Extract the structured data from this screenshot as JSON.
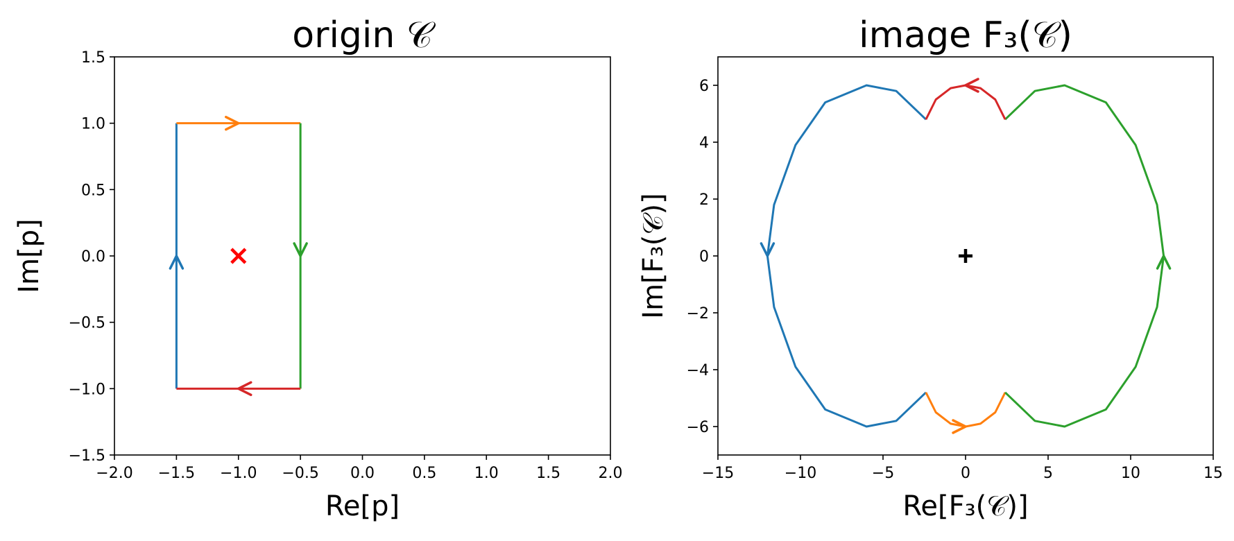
{
  "chart_data": [
    {
      "type": "line",
      "title": "origin 𝒞",
      "xlabel": "Re[p]",
      "ylabel": "Im[p]",
      "xlim": [
        -2.0,
        2.0
      ],
      "ylim": [
        -1.5,
        1.5
      ],
      "xticks": [
        -2.0,
        -1.5,
        -1.0,
        -0.5,
        0.0,
        0.5,
        1.0,
        1.5,
        2.0
      ],
      "yticks": [
        -1.5,
        -1.0,
        -0.5,
        0.0,
        0.5,
        1.0,
        1.5
      ],
      "xtick_labels": [
        "−2.0",
        "−1.5",
        "−1.0",
        "−0.5",
        "0.0",
        "0.5",
        "1.0",
        "1.5",
        "2.0"
      ],
      "ytick_labels": [
        "−1.5",
        "−1.0",
        "−0.5",
        "0.0",
        "0.5",
        "1.0",
        "1.5"
      ],
      "grid": false,
      "series": [
        {
          "color": "#1f77b4",
          "points": [
            [
              -1.5,
              -1.0
            ],
            [
              -1.5,
              1.0
            ]
          ],
          "arrow": {
            "at": [
              -1.5,
              0.0
            ],
            "direction": "up"
          }
        },
        {
          "color": "#ff7f0e",
          "points": [
            [
              -1.5,
              1.0
            ],
            [
              -0.5,
              1.0
            ]
          ],
          "arrow": {
            "at": [
              -1.0,
              1.0
            ],
            "direction": "right"
          }
        },
        {
          "color": "#2ca02c",
          "points": [
            [
              -0.5,
              1.0
            ],
            [
              -0.5,
              -1.0
            ]
          ],
          "arrow": {
            "at": [
              -0.5,
              0.0
            ],
            "direction": "down"
          }
        },
        {
          "color": "#d62728",
          "points": [
            [
              -0.5,
              -1.0
            ],
            [
              -1.5,
              -1.0
            ]
          ],
          "arrow": {
            "at": [
              -1.0,
              -1.0
            ],
            "direction": "left"
          }
        }
      ],
      "markers": [
        {
          "symbol": "x",
          "color": "#ff0000",
          "x": -1.0,
          "y": 0.0
        }
      ]
    },
    {
      "type": "line",
      "title": "image F₃(𝒞)",
      "xlabel": "Re[F₃(𝒞)]",
      "ylabel": "Im[F₃(𝒞)]",
      "xlim": [
        -15,
        15
      ],
      "ylim": [
        -7,
        7
      ],
      "xticks": [
        -15,
        -10,
        -5,
        0,
        5,
        10,
        15
      ],
      "yticks": [
        -6,
        -4,
        -2,
        0,
        2,
        4,
        6
      ],
      "xtick_labels": [
        "−15",
        "−10",
        "−5",
        "0",
        "5",
        "10",
        "15"
      ],
      "ytick_labels": [
        "−6",
        "−4",
        "−2",
        "0",
        "2",
        "4",
        "6"
      ],
      "grid": false,
      "series": [
        {
          "color": "#1f77b4",
          "points": [
            [
              -2.4,
              -4.8
            ],
            [
              -4.2,
              -5.8
            ],
            [
              -6.0,
              -6.0
            ],
            [
              -8.5,
              -5.4
            ],
            [
              -10.3,
              -3.9
            ],
            [
              -11.6,
              -1.8
            ],
            [
              -12.0,
              0.0
            ],
            [
              -11.6,
              1.8
            ],
            [
              -10.3,
              3.9
            ],
            [
              -8.5,
              5.4
            ],
            [
              -6.0,
              6.0
            ],
            [
              -4.2,
              5.8
            ],
            [
              -2.4,
              4.8
            ]
          ],
          "arrow": {
            "at": [
              -12.0,
              0.0
            ],
            "direction": "down"
          }
        },
        {
          "color": "#ff7f0e",
          "points": [
            [
              -2.4,
              -4.8
            ],
            [
              -1.8,
              -5.5
            ],
            [
              -0.9,
              -5.9
            ],
            [
              0.0,
              -6.0
            ],
            [
              0.9,
              -5.9
            ],
            [
              1.8,
              -5.5
            ],
            [
              2.4,
              -4.8
            ]
          ],
          "arrow": {
            "at": [
              0.0,
              -6.0
            ],
            "direction": "right"
          }
        },
        {
          "color": "#2ca02c",
          "points": [
            [
              2.4,
              4.8
            ],
            [
              4.2,
              5.8
            ],
            [
              6.0,
              6.0
            ],
            [
              8.5,
              5.4
            ],
            [
              10.3,
              3.9
            ],
            [
              11.6,
              1.8
            ],
            [
              12.0,
              0.0
            ],
            [
              11.6,
              -1.8
            ],
            [
              10.3,
              -3.9
            ],
            [
              8.5,
              -5.4
            ],
            [
              6.0,
              -6.0
            ],
            [
              4.2,
              -5.8
            ],
            [
              2.4,
              -4.8
            ]
          ],
          "arrow": {
            "at": [
              12.0,
              0.0
            ],
            "direction": "up"
          }
        },
        {
          "color": "#d62728",
          "points": [
            [
              2.4,
              4.8
            ],
            [
              1.8,
              5.5
            ],
            [
              0.9,
              5.9
            ],
            [
              0.0,
              6.0
            ],
            [
              -0.9,
              5.9
            ],
            [
              -1.8,
              5.5
            ],
            [
              -2.4,
              4.8
            ]
          ],
          "arrow": {
            "at": [
              0.0,
              6.0
            ],
            "direction": "left"
          }
        }
      ],
      "markers": [
        {
          "symbol": "+",
          "color": "#000000",
          "x": 0.0,
          "y": 0.0
        }
      ]
    }
  ]
}
